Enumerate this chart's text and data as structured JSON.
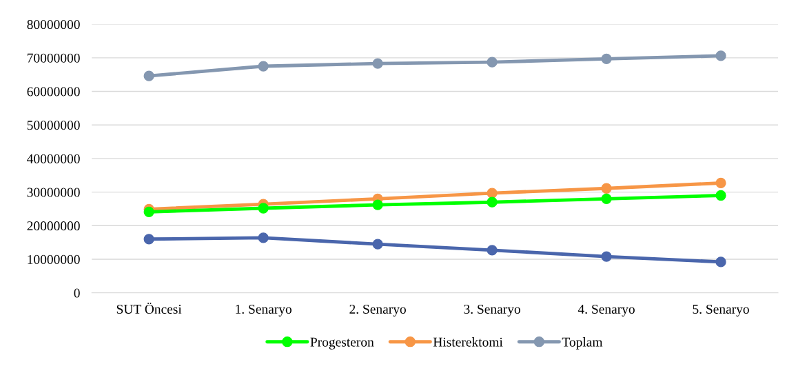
{
  "chart_data": {
    "type": "line",
    "categories": [
      "SUT Öncesi",
      "1. Senaryo",
      "2. Senaryo",
      "3. Senaryo",
      "4. Senaryo",
      "5. Senaryo"
    ],
    "series": [
      {
        "color": "#4a66ac",
        "values": [
          16000000,
          16400000,
          14500000,
          12700000,
          10800000,
          9200000
        ]
      },
      {
        "name": "Progesteron",
        "color": "#00ff00",
        "values": [
          24100000,
          25200000,
          26200000,
          27000000,
          28000000,
          29000000
        ]
      },
      {
        "name": "Histerektomi",
        "color": "#f79646",
        "values": [
          24900000,
          26400000,
          28000000,
          29700000,
          31100000,
          32700000
        ]
      },
      {
        "name": "Toplam",
        "color": "#8497b0",
        "values": [
          64600000,
          67500000,
          68300000,
          68700000,
          69700000,
          70600000
        ]
      }
    ],
    "ylim": [
      0,
      80000000
    ],
    "yticks": [
      0,
      10000000,
      20000000,
      30000000,
      40000000,
      50000000,
      60000000,
      70000000,
      80000000
    ],
    "grid": "y",
    "legend": "bottom",
    "marker": "circle",
    "line_style": "solid"
  }
}
